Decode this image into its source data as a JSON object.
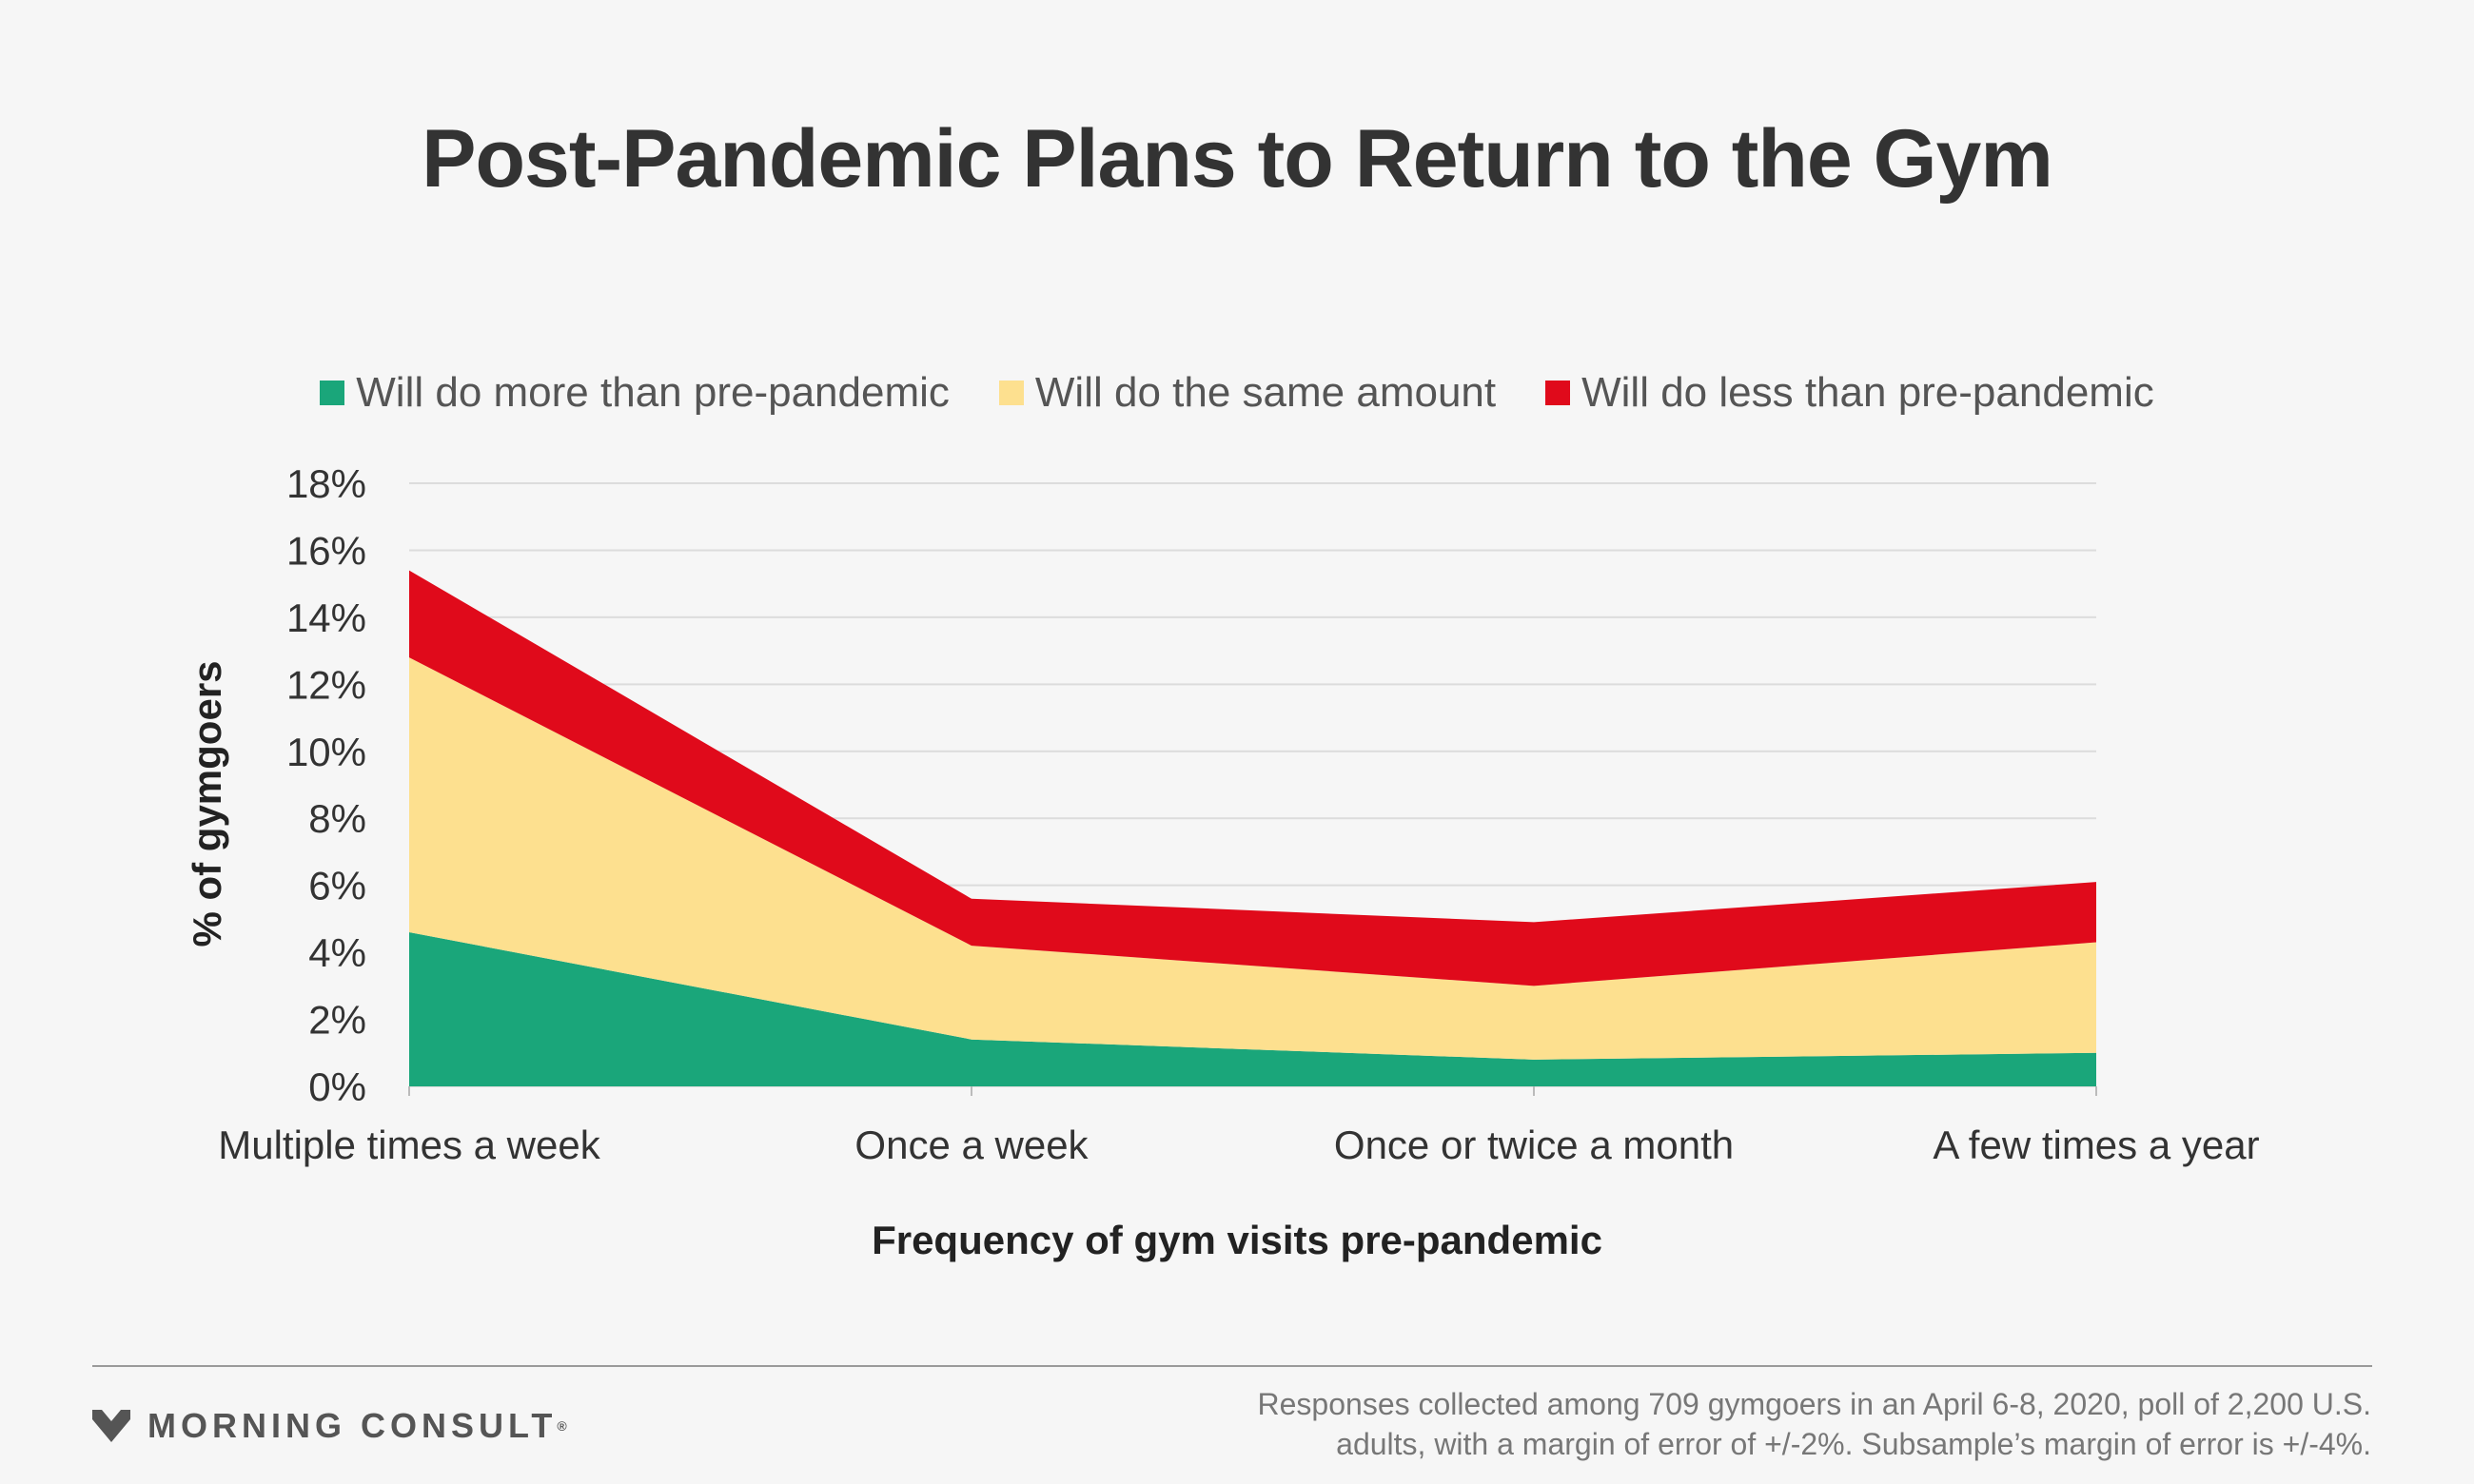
{
  "colors": {
    "more": "#1aa67a",
    "same": "#fde08f",
    "less": "#e00a1b",
    "grid": "#dcdcdc",
    "background": "#f6f6f6"
  },
  "footer": {
    "brand": "MORNING CONSULT",
    "brand_icon": "morning-consult-chevron-logo",
    "source_line1": "Responses collected among 709 gymgoers in an April 6-8, 2020, poll of 2,200 U.S.",
    "source_line2": "adults, with a margin of error of +/-2%. Subsample’s margin of error is +/-4%."
  },
  "chart_data": {
    "type": "area",
    "stacked": true,
    "title": "Post-Pandemic Plans to Return to the Gym",
    "xlabel": "Frequency of gym visits pre-pandemic",
    "ylabel": "% of gymgoers",
    "categories": [
      "Multiple times a week",
      "Once a week",
      "Once or twice a month",
      "A few times a year"
    ],
    "ylim": [
      0,
      18
    ],
    "yticks": [
      0,
      2,
      4,
      6,
      8,
      10,
      12,
      14,
      16,
      18
    ],
    "ytick_suffix": "%",
    "grid": true,
    "legend_position": "top",
    "series": [
      {
        "name": "Will do more than pre-pandemic",
        "key": "more",
        "values": [
          4.6,
          1.4,
          0.8,
          1.0
        ]
      },
      {
        "name": "Will do the same amount",
        "key": "same",
        "values": [
          8.2,
          2.8,
          2.2,
          3.3
        ]
      },
      {
        "name": "Will do less than pre-pandemic",
        "key": "less",
        "values": [
          2.6,
          1.4,
          1.9,
          1.8
        ]
      }
    ]
  }
}
